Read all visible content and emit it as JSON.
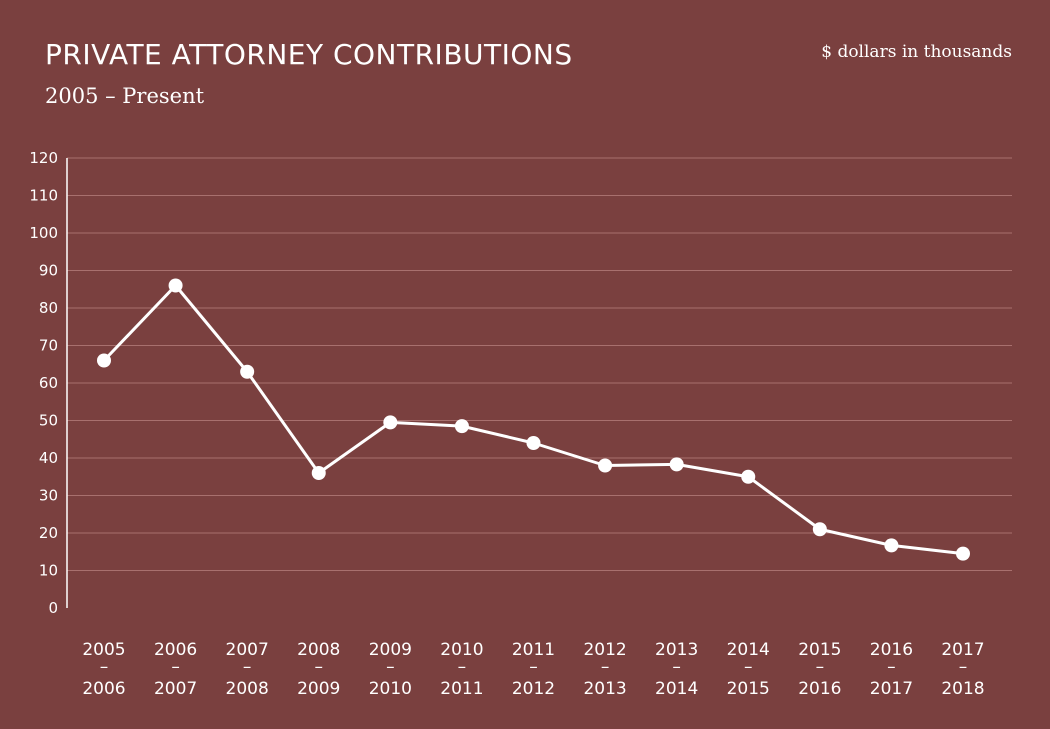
{
  "chart_data": {
    "type": "line",
    "title": "PRIVATE ATTORNEY CONTRIBUTIONS",
    "subtitle": "2005 – Present",
    "unit_label": "$ dollars in thousands",
    "categories": [
      [
        "2005",
        "–",
        "2006"
      ],
      [
        "2006",
        "–",
        "2007"
      ],
      [
        "2007",
        "–",
        "2008"
      ],
      [
        "2008",
        "–",
        "2009"
      ],
      [
        "2009",
        "–",
        "2010"
      ],
      [
        "2010",
        "–",
        "2011"
      ],
      [
        "2011",
        "–",
        "2012"
      ],
      [
        "2012",
        "–",
        "2013"
      ],
      [
        "2013",
        "–",
        "2014"
      ],
      [
        "2014",
        "–",
        "2015"
      ],
      [
        "2015",
        "–",
        "2016"
      ],
      [
        "2016",
        "–",
        "2017"
      ],
      [
        "2017",
        "–",
        "2018"
      ]
    ],
    "values": [
      66,
      86,
      63,
      36,
      49.5,
      48.5,
      44,
      38,
      38.3,
      35,
      21,
      16.7,
      14.5
    ],
    "ylim": [
      0,
      120
    ],
    "yticks": [
      0,
      10,
      20,
      30,
      40,
      50,
      60,
      70,
      80,
      90,
      100,
      110,
      120
    ],
    "grid": true,
    "colors": {
      "background": "#7a403f",
      "line": "#ffffff",
      "grid": "#a8706e"
    }
  }
}
